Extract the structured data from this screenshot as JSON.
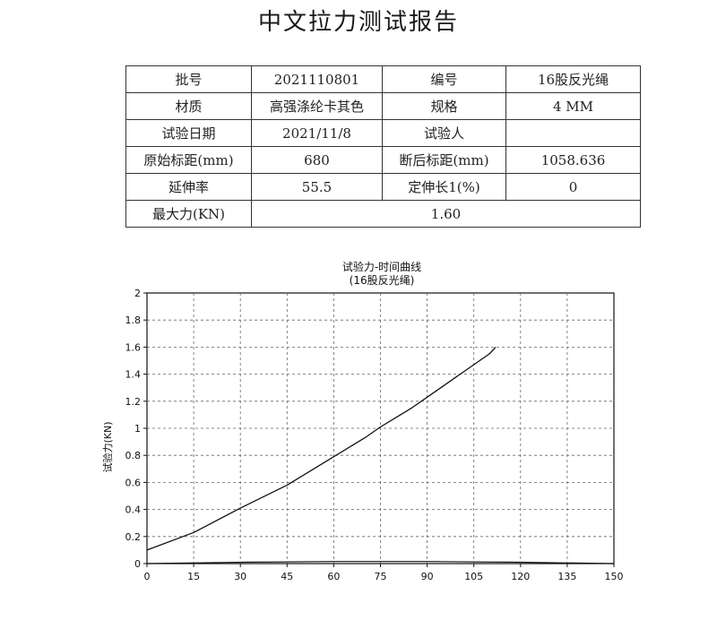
{
  "report": {
    "title": "中文拉力测试报告",
    "rows": [
      {
        "l1": "批号",
        "v1": "2021110801",
        "l2": "编号",
        "v2": "16股反光绳"
      },
      {
        "l1": "材质",
        "v1": "高强涤纶卡其色",
        "l2": "规格",
        "v2": "4 MM"
      },
      {
        "l1": "试验日期",
        "v1": "2021/11/8",
        "l2": "试验人",
        "v2": ""
      },
      {
        "l1": "原始标距(mm)",
        "v1": "680",
        "l2": "断后标距(mm)",
        "v2": "1058.636"
      },
      {
        "l1": "延伸率",
        "v1": "55.5",
        "l2": "定伸长1(%)",
        "v2": "0"
      }
    ],
    "max_force_label": "最大力(KN)",
    "max_force_value": "1.60"
  },
  "chart_data": {
    "type": "line",
    "title": "试验力-时间曲线",
    "subtitle": "(16股反光绳)",
    "xlabel": "",
    "ylabel": "试验力(KN)",
    "xlim": [
      0,
      150
    ],
    "ylim": [
      0,
      2
    ],
    "xticks": [
      0,
      15,
      30,
      45,
      60,
      75,
      90,
      105,
      120,
      135,
      150
    ],
    "yticks": [
      0,
      0.2,
      0.4,
      0.6,
      0.8,
      1,
      1.2,
      1.4,
      1.6,
      1.8,
      2
    ],
    "grid": true,
    "series": [
      {
        "name": "",
        "x": [
          0,
          15,
          30,
          45,
          60,
          65,
          70,
          75,
          80,
          85,
          90,
          95,
          100,
          105,
          110,
          112
        ],
        "y": [
          0.1,
          0.23,
          0.41,
          0.58,
          0.79,
          0.86,
          0.93,
          1.01,
          1.08,
          1.15,
          1.23,
          1.31,
          1.39,
          1.47,
          1.55,
          1.6
        ]
      },
      {
        "name": "",
        "x": [
          0,
          30,
          60,
          90,
          120,
          150
        ],
        "y": [
          0,
          0.01,
          0.015,
          0.015,
          0.01,
          0
        ]
      }
    ]
  }
}
